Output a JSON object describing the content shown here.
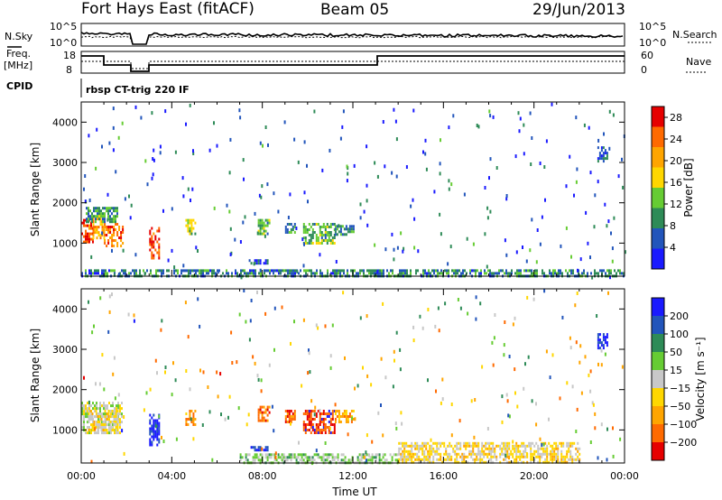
{
  "header": {
    "station": "Fort Hays East (fitACF)",
    "beam": "Beam 05",
    "date": "29/Jun/2013"
  },
  "strips": {
    "nsky_label": "N.Sky",
    "nsearch_label": "N.Search",
    "freq_label_1": "Freq.",
    "freq_label_2": "[MHz]",
    "nave_label": "Nave",
    "cpid_label": "CPID",
    "cpid_text": "rbsp CT-trig 220 IF",
    "noise_ticks_left": [
      "10^5",
      "10^0"
    ],
    "noise_ticks_right": [
      "10^5",
      "10^0"
    ],
    "freq_ticks_left": [
      "18",
      "8"
    ],
    "nave_ticks_right": [
      "60",
      "0"
    ]
  },
  "colors": {
    "power_scale": [
      "#1a1aff",
      "#2255bb",
      "#2e8b57",
      "#66cc33",
      "#ffd700",
      "#ffa500",
      "#ff6a00",
      "#e60000"
    ],
    "velocity_scale": [
      "#1a1aff",
      "#2255bb",
      "#2e8b57",
      "#66cc33",
      "#c8c8c8",
      "#ffd700",
      "#ffa500",
      "#ff6a00",
      "#e60000"
    ]
  },
  "chart_data": [
    {
      "type": "heatmap",
      "panel": "power",
      "ylabel": "Slant Range [km]",
      "xlim": [
        0,
        24
      ],
      "ylim": [
        180,
        4500
      ],
      "yticks": [
        1000,
        2000,
        3000,
        4000
      ],
      "colorbar": {
        "label": "Power [dB]",
        "ticks": [
          4,
          8,
          12,
          16,
          20,
          24,
          28
        ],
        "range": [
          0,
          30
        ]
      },
      "patches": [
        {
          "t0": 0.0,
          "t1": 0.5,
          "r0": 1000,
          "r1": 1600,
          "value": 26
        },
        {
          "t0": 0.5,
          "t1": 1.0,
          "r0": 1100,
          "r1": 1700,
          "value": 20
        },
        {
          "t0": 1.0,
          "t1": 1.8,
          "r0": 950,
          "r1": 1500,
          "value": 24
        },
        {
          "t0": 0.2,
          "t1": 1.6,
          "r0": 1500,
          "r1": 1900,
          "value": 10
        },
        {
          "t0": 3.0,
          "t1": 3.4,
          "r0": 600,
          "r1": 1400,
          "value": 26
        },
        {
          "t0": 4.6,
          "t1": 5.0,
          "r0": 1200,
          "r1": 1600,
          "value": 14
        },
        {
          "t0": 7.8,
          "t1": 8.3,
          "r0": 1200,
          "r1": 1600,
          "value": 12
        },
        {
          "t0": 9.0,
          "t1": 9.4,
          "r0": 1250,
          "r1": 1500,
          "value": 10
        },
        {
          "t0": 9.8,
          "t1": 11.2,
          "r0": 1000,
          "r1": 1500,
          "value": 12
        },
        {
          "t0": 11.2,
          "t1": 12.0,
          "r0": 1200,
          "r1": 1450,
          "value": 8
        },
        {
          "t0": 7.4,
          "t1": 8.2,
          "r0": 500,
          "r1": 600,
          "value": 6
        },
        {
          "t0": 22.8,
          "t1": 23.2,
          "r0": 3000,
          "r1": 3400,
          "value": 6
        },
        {
          "t0": 0.0,
          "t1": 24.0,
          "r0": 180,
          "r1": 350,
          "value": 8
        }
      ]
    },
    {
      "type": "heatmap",
      "panel": "velocity",
      "ylabel": "Slant Range [km]",
      "xlabel": "Time UT",
      "xlim": [
        0,
        24
      ],
      "ylim": [
        180,
        4500
      ],
      "yticks": [
        1000,
        2000,
        3000,
        4000
      ],
      "xticks": [
        "00:00",
        "04:00",
        "08:00",
        "12:00",
        "16:00",
        "20:00",
        "00:00"
      ],
      "colorbar": {
        "label": "Velocity [m s⁻¹]",
        "ticks": [
          "200",
          "100",
          "50",
          "15",
          "−15",
          "−50",
          "−100",
          "−200"
        ],
        "range": [
          -250,
          250
        ]
      },
      "patches": [
        {
          "t0": 0.0,
          "t1": 1.8,
          "r0": 900,
          "r1": 1700,
          "value": 0
        },
        {
          "t0": 0.3,
          "t1": 1.6,
          "r0": 1000,
          "r1": 1500,
          "value": -40
        },
        {
          "t0": 3.0,
          "t1": 3.4,
          "r0": 600,
          "r1": 1400,
          "value": 200
        },
        {
          "t0": 4.6,
          "t1": 5.0,
          "r0": 1100,
          "r1": 1500,
          "value": -120
        },
        {
          "t0": 7.8,
          "t1": 8.3,
          "r0": 1200,
          "r1": 1600,
          "value": -150
        },
        {
          "t0": 9.0,
          "t1": 9.4,
          "r0": 1200,
          "r1": 1500,
          "value": -160
        },
        {
          "t0": 9.8,
          "t1": 11.2,
          "r0": 950,
          "r1": 1500,
          "value": -200
        },
        {
          "t0": 11.2,
          "t1": 12.0,
          "r0": 1200,
          "r1": 1500,
          "value": -120
        },
        {
          "t0": 7.4,
          "t1": 8.2,
          "r0": 500,
          "r1": 600,
          "value": 200
        },
        {
          "t0": 22.8,
          "t1": 23.2,
          "r0": 3000,
          "r1": 3400,
          "value": 200
        },
        {
          "t0": 7.0,
          "t1": 14.0,
          "r0": 180,
          "r1": 420,
          "value": 40
        },
        {
          "t0": 14.0,
          "t1": 22.0,
          "r0": 180,
          "r1": 700,
          "value": -40
        }
      ]
    }
  ],
  "axes": {
    "xlabel": "Time UT",
    "xticks": [
      "00:00",
      "04:00",
      "08:00",
      "12:00",
      "16:00",
      "20:00",
      "00:00"
    ],
    "yticks": [
      "1000",
      "2000",
      "3000",
      "4000"
    ],
    "power_label": "Power [dB]",
    "velocity_label": "Velocity [m s⁻¹]",
    "slant_label": "Slant Range [km]"
  }
}
